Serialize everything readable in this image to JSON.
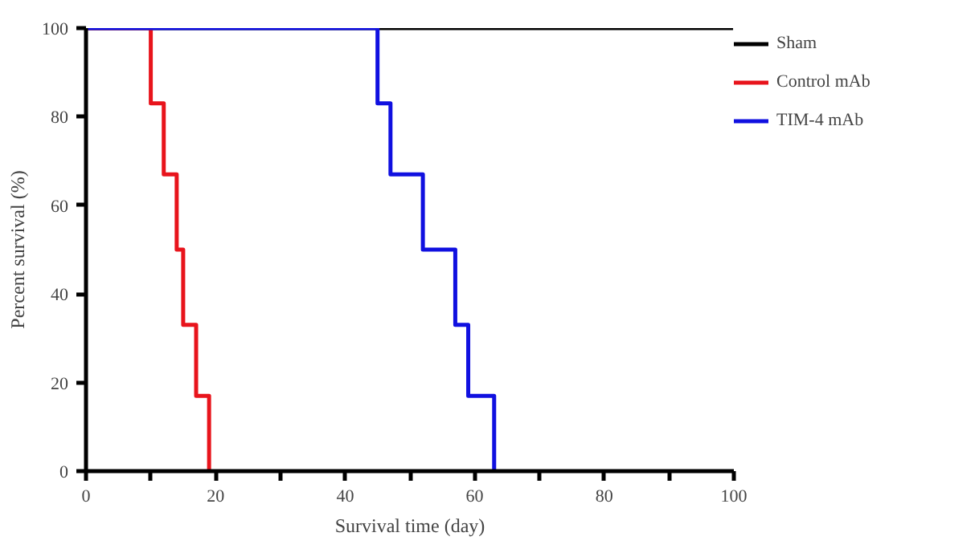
{
  "chart_data": {
    "type": "step",
    "xlabel": "Survival time (day)",
    "ylabel": "Percent survival (%)",
    "xlim": [
      0,
      100
    ],
    "ylim": [
      0,
      100
    ],
    "xticks": [
      0,
      {
        "value": 10,
        "label": null
      },
      20,
      {
        "value": 30,
        "label": null
      },
      40,
      {
        "value": 50,
        "label": null
      },
      60,
      {
        "value": 70,
        "label": null
      },
      80,
      {
        "value": 90,
        "label": null
      },
      100
    ],
    "yticks": [
      0,
      20,
      40,
      60,
      80,
      100
    ],
    "grid": false,
    "legend": "right",
    "series": [
      {
        "name": "Sham",
        "color": "#000000",
        "x": [
          0,
          100
        ],
        "values": [
          100,
          100
        ]
      },
      {
        "name": "Control mAb",
        "color": "#e8141c",
        "x": [
          0,
          10,
          12,
          14,
          15,
          17,
          19
        ],
        "values": [
          100,
          83,
          67,
          50,
          33,
          17,
          0
        ]
      },
      {
        "name": "TIM-4 mAb",
        "color": "#1010e0",
        "x": [
          0,
          45,
          47,
          52,
          57,
          59,
          63
        ],
        "values": [
          100,
          83,
          67,
          50,
          33,
          17,
          0
        ]
      }
    ]
  }
}
